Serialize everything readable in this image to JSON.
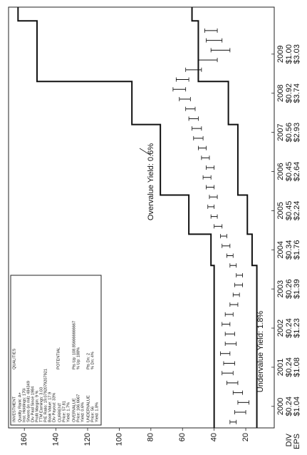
{
  "chart_data": {
    "type": "valuation",
    "xlim": [
      1999.45,
      2010.2
    ],
    "xticks": [
      2000,
      2001,
      2002,
      2003,
      2004,
      2005,
      2006,
      2007,
      2008,
      2009
    ],
    "row_labels": [
      "DIV",
      "EPS"
    ],
    "div": [
      "$0.24",
      "$0.24",
      "$0.24",
      "$0.26",
      "$0.34",
      "$0.45",
      "$0.45",
      "$0.56",
      "$0.92",
      "$1.00"
    ],
    "eps": [
      "$1.04",
      "$1.08",
      "$1.23",
      "$1.39",
      "$1.76",
      "$2.24",
      "$2.64",
      "$2.93",
      "$3.74",
      "$3.03"
    ],
    "ylim": [
      2,
      170
    ],
    "yticks": [
      20,
      40,
      60,
      80,
      100,
      120,
      140,
      160
    ],
    "grid": false,
    "overvalue": {
      "color": "#111111",
      "x": [
        1999.45,
        2003.6,
        2003.6,
        2004.4,
        2004.4,
        2005.4,
        2005.4,
        2007.2,
        2007.2,
        2008.3,
        2008.3,
        2009.85,
        2009.85,
        2010.2
      ],
      "values": [
        40,
        40,
        42,
        42,
        56,
        56,
        74,
        74,
        92,
        92,
        152,
        152,
        164,
        164
      ]
    },
    "undervalue": {
      "color": "#111111",
      "x": [
        1999.45,
        2003.6,
        2003.6,
        2004.4,
        2004.4,
        2005.4,
        2005.4,
        2007.2,
        2007.2,
        2008.3,
        2008.3,
        2009.85,
        2009.85,
        2010.2
      ],
      "values": [
        13,
        13,
        16,
        16,
        19,
        19,
        25,
        25,
        31,
        31,
        50,
        50,
        54,
        54
      ]
    },
    "prices": {
      "color": "#111111",
      "x": [
        1999.6,
        1999.85,
        2000.1,
        2000.35,
        2000.6,
        2000.85,
        2001.1,
        2001.35,
        2001.6,
        2001.85,
        2002.1,
        2002.35,
        2002.6,
        2002.85,
        2003.1,
        2003.35,
        2003.6,
        2003.85,
        2004.1,
        2004.35,
        2004.6,
        2004.85,
        2005.1,
        2005.35,
        2005.6,
        2005.85,
        2006.1,
        2006.35,
        2006.6,
        2006.85,
        2007.1,
        2007.35,
        2007.6,
        2007.85,
        2008.1,
        2008.35,
        2008.6,
        2008.85,
        2009.1,
        2009.35,
        2009.6
      ],
      "low": [
        26,
        20,
        18,
        22,
        25,
        28,
        27,
        30,
        26,
        27,
        30,
        28,
        25,
        24,
        22,
        22,
        26,
        28,
        30,
        32,
        35,
        38,
        40,
        38,
        40,
        42,
        40,
        43,
        45,
        47,
        48,
        50,
        52,
        55,
        58,
        56,
        48,
        38,
        30,
        35,
        38
      ],
      "high": [
        30,
        27,
        25,
        28,
        32,
        35,
        34,
        36,
        33,
        33,
        35,
        33,
        30,
        28,
        27,
        26,
        30,
        32,
        35,
        36,
        40,
        42,
        44,
        43,
        45,
        47,
        45,
        48,
        50,
        53,
        54,
        56,
        58,
        62,
        66,
        64,
        58,
        50,
        42,
        45,
        46
      ]
    },
    "annotations": {
      "overvalue": "Overvalue Yield: 0.6%",
      "undervalue": "Undervalue Yield: 1.8%"
    },
    "info_box": {
      "title": "INVESTMENT",
      "title2": "QUALITIES",
      "qualities": [
        "Quality Rank: A+",
        "Inst. Holdings: 170i",
        "Shares (in mil): 484349",
        "Div Paid Since 1984",
        "Profit Margin: 9 %",
        "TTM Earnings: 3.03",
        "P/E Ratio: 19.0792079207921",
        "Book Value: 17.9",
        "Div Payout: 33%"
      ],
      "current": [
        "CURRENT",
        "Price: 57.81",
        "Yield: 1.7%"
      ],
      "potential": "POTENTIAL",
      "overvalue": [
        "OVERVALUE",
        "Price: 166.6667",
        "Yield: 0.6%"
      ],
      "overvalue_potential": [
        "Pts Up: 108.856666666667",
        "% Up: 188%"
      ],
      "undervalue": [
        "UNDERVALUE",
        "Price: 56",
        "Yield: 1.8%"
      ],
      "undervalue_potential": [
        "Pts Dn: 2",
        "% Dn: 4%"
      ]
    }
  }
}
